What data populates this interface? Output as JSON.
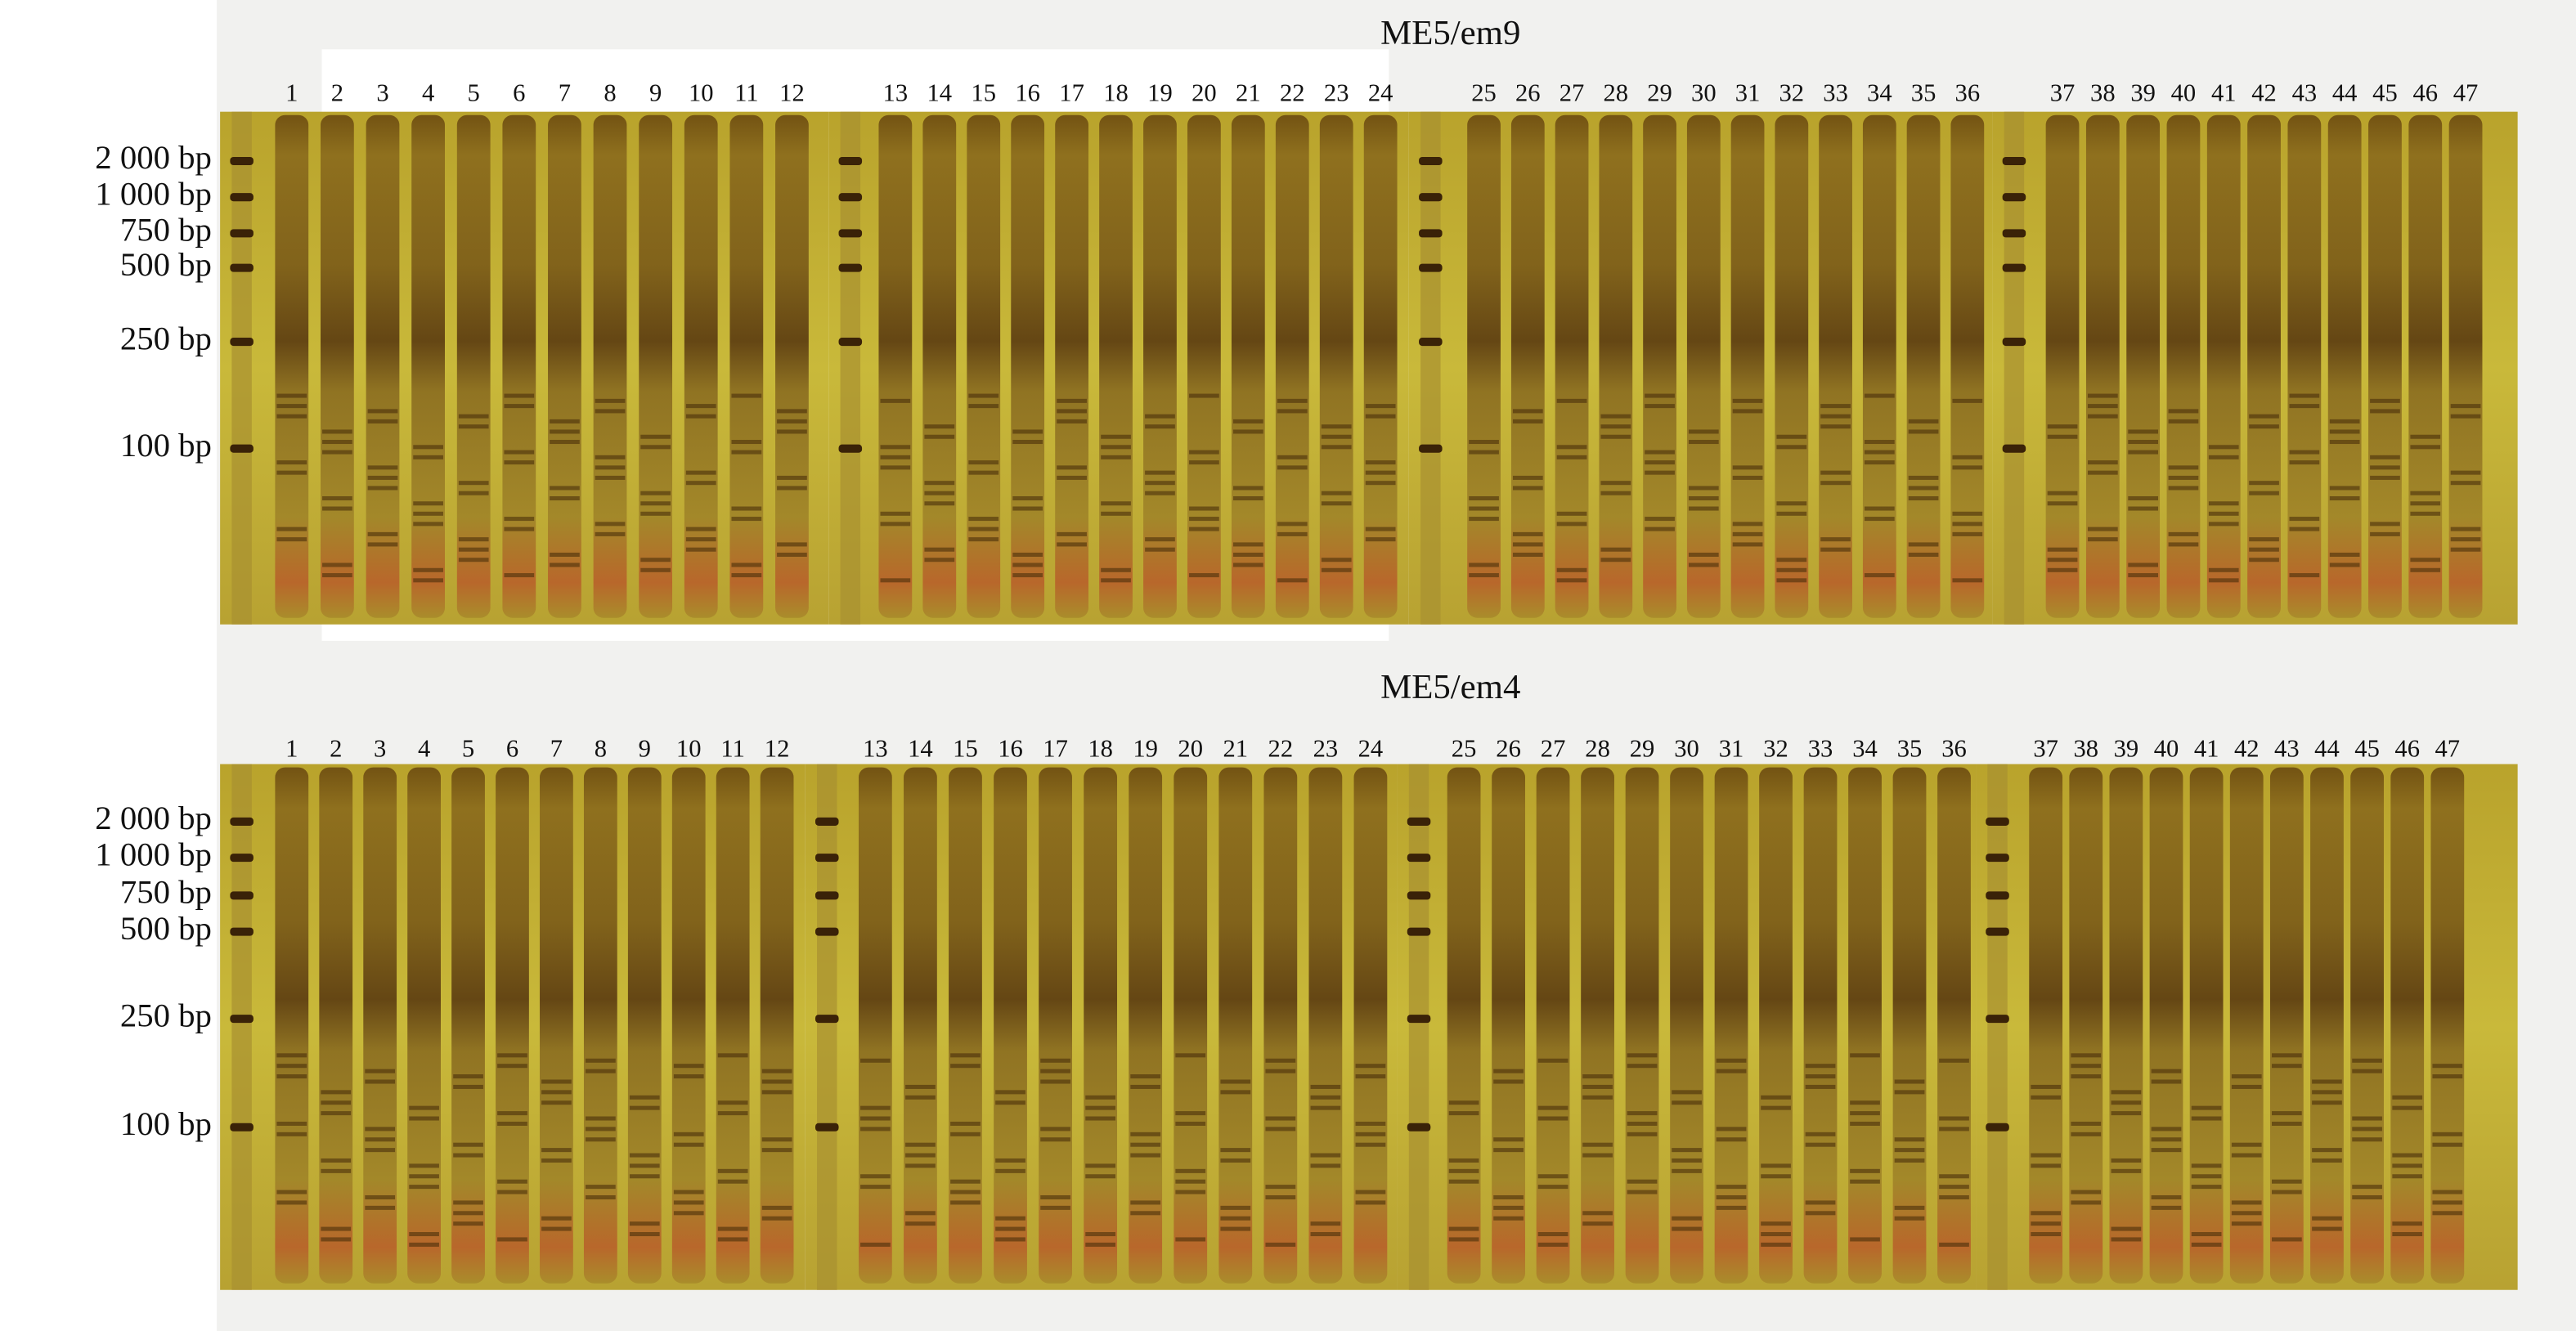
{
  "panels": [
    {
      "title": "ME5/em9",
      "lanes": [
        "1",
        "2",
        "3",
        "4",
        "5",
        "6",
        "7",
        "8",
        "9",
        "10",
        "11",
        "12",
        "13",
        "14",
        "15",
        "16",
        "17",
        "18",
        "19",
        "20",
        "21",
        "22",
        "23",
        "24",
        "25",
        "26",
        "27",
        "28",
        "29",
        "30",
        "31",
        "32",
        "33",
        "34",
        "35",
        "36",
        "37",
        "38",
        "39",
        "40",
        "41",
        "42",
        "43",
        "44",
        "45",
        "46",
        "47"
      ],
      "markers": [
        "2 000 bp",
        "1 000 bp",
        "750 bp",
        "500 bp",
        "250 bp",
        "100 bp"
      ]
    },
    {
      "title": "ME5/em4",
      "lanes": [
        "1",
        "2",
        "3",
        "4",
        "5",
        "6",
        "7",
        "8",
        "9",
        "10",
        "11",
        "12",
        "13",
        "14",
        "15",
        "16",
        "17",
        "18",
        "19",
        "20",
        "21",
        "22",
        "23",
        "24",
        "25",
        "26",
        "27",
        "28",
        "29",
        "30",
        "31",
        "32",
        "33",
        "34",
        "35",
        "36",
        "37",
        "38",
        "39",
        "40",
        "41",
        "42",
        "43",
        "44",
        "45",
        "46",
        "47"
      ],
      "markers": [
        "2 000 bp",
        "1 000 bp",
        "750 bp",
        "500 bp",
        "250 bp",
        "100 bp"
      ]
    }
  ]
}
